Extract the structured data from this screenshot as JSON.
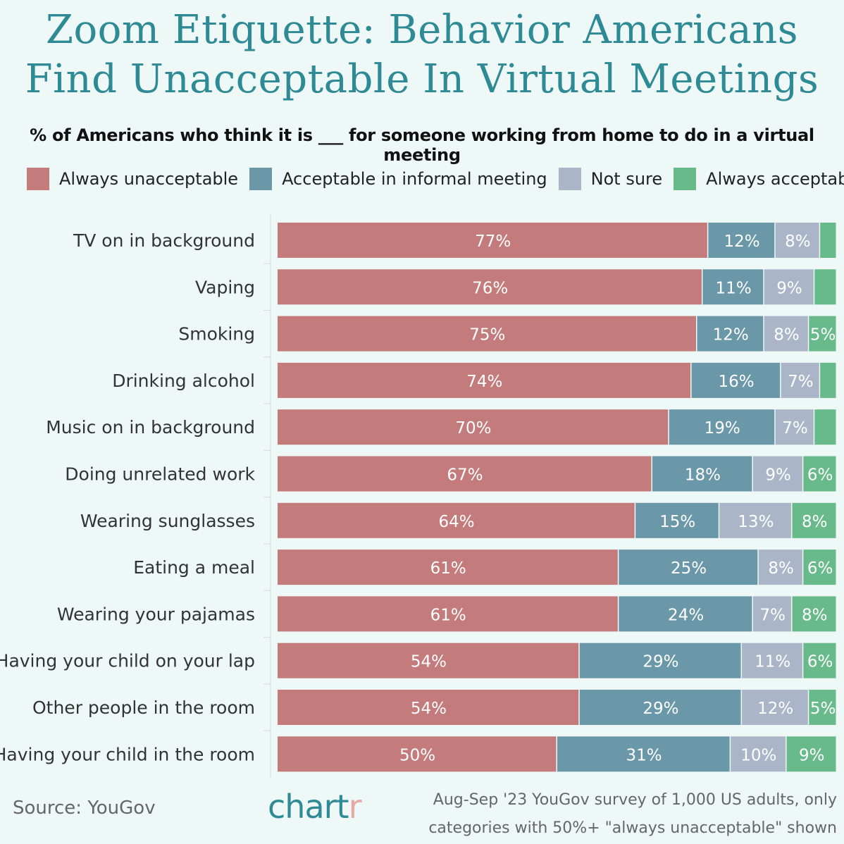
{
  "header": {
    "title_line1": "Zoom Etiquette: Behavior Americans",
    "title_line2": "Find Unacceptable In Virtual Meetings",
    "subtitle": "% of Americans who think it is ___ for someone working from home to do in a virtual meeting"
  },
  "legend": [
    {
      "label": "Always unacceptable",
      "color": "#c47b7b"
    },
    {
      "label": "Acceptable in informal meeting",
      "color": "#6a98a8"
    },
    {
      "label": "Not sure",
      "color": "#aab6c8"
    },
    {
      "label": "Always acceptable",
      "color": "#68ba8a"
    }
  ],
  "chart_data": {
    "type": "bar",
    "orientation": "horizontal",
    "stacked": true,
    "title": "Zoom Etiquette: Behavior Americans Find Unacceptable In Virtual Meetings",
    "categories": [
      "TV on in background",
      "Vaping",
      "Smoking",
      "Drinking alcohol",
      "Music on in background",
      "Doing unrelated work",
      "Wearing sunglasses",
      "Eating a meal",
      "Wearing your pajamas",
      "Having your child on your lap",
      "Other people in the room",
      "Having your child in the room"
    ],
    "series": [
      {
        "name": "Always unacceptable",
        "values": [
          77,
          76,
          75,
          74,
          70,
          67,
          64,
          61,
          61,
          54,
          54,
          50
        ]
      },
      {
        "name": "Acceptable in informal meeting",
        "values": [
          12,
          11,
          12,
          16,
          19,
          18,
          15,
          25,
          24,
          29,
          29,
          31
        ]
      },
      {
        "name": "Not sure",
        "values": [
          8,
          9,
          8,
          7,
          7,
          9,
          13,
          8,
          7,
          11,
          12,
          10
        ]
      },
      {
        "name": "Always acceptable",
        "values": [
          3,
          4,
          5,
          3,
          4,
          6,
          8,
          6,
          8,
          6,
          5,
          9
        ]
      }
    ],
    "labels": [
      [
        "77%",
        "12%",
        "8%",
        ""
      ],
      [
        "76%",
        "11%",
        "9%",
        ""
      ],
      [
        "75%",
        "12%",
        "8%",
        "5%"
      ],
      [
        "74%",
        "16%",
        "7%",
        ""
      ],
      [
        "70%",
        "19%",
        "7%",
        ""
      ],
      [
        "67%",
        "18%",
        "9%",
        "6%"
      ],
      [
        "64%",
        "15%",
        "13%",
        "8%"
      ],
      [
        "61%",
        "25%",
        "8%",
        "6%"
      ],
      [
        "61%",
        "24%",
        "7%",
        "8%"
      ],
      [
        "54%",
        "29%",
        "11%",
        "6%"
      ],
      [
        "54%",
        "29%",
        "12%",
        "5%"
      ],
      [
        "50%",
        "31%",
        "10%",
        "9%"
      ]
    ],
    "xlim": [
      0,
      100
    ]
  },
  "footer": {
    "source": "Source: YouGov",
    "logo_main": "chart",
    "logo_accent": "r",
    "note_line1": "Aug-Sep '23 YouGov survey of  1,000 US adults, only",
    "note_line2": "categories with 50%+ \"always unacceptable\" shown"
  }
}
